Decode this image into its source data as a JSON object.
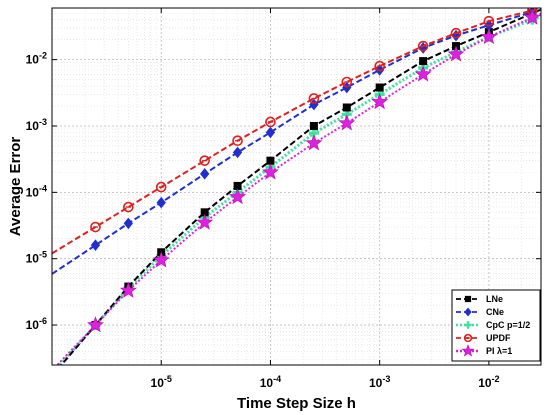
{
  "chart_data": {
    "type": "line",
    "xlabel": "Time Step Size h",
    "ylabel": "Average Error",
    "x_scale": "log",
    "y_scale": "log",
    "xlim": [
      1e-06,
      0.03
    ],
    "ylim": [
      2.5e-07,
      0.06
    ],
    "x_ticks": [
      {
        "value": 1e-05,
        "base": "10",
        "exp": "-5"
      },
      {
        "value": 0.0001,
        "base": "10",
        "exp": "-4"
      },
      {
        "value": 0.001,
        "base": "10",
        "exp": "-3"
      },
      {
        "value": 0.01,
        "base": "10",
        "exp": "-2"
      }
    ],
    "y_ticks": [
      {
        "value": 1e-06,
        "base": "10",
        "exp": "-6"
      },
      {
        "value": 1e-05,
        "base": "10",
        "exp": "-5"
      },
      {
        "value": 0.0001,
        "base": "10",
        "exp": "-4"
      },
      {
        "value": 0.001,
        "base": "10",
        "exp": "-3"
      },
      {
        "value": 0.01,
        "base": "10",
        "exp": "-2"
      }
    ],
    "grid": true,
    "legend_position": "bottom-right",
    "series": [
      {
        "name": "LNe",
        "color": "#000000",
        "marker": "square",
        "line_style": "dashed",
        "x": [
          2.5e-06,
          5e-06,
          1e-05,
          2.5e-05,
          5e-05,
          0.0001,
          0.00025,
          0.0005,
          0.001,
          0.0025,
          0.005,
          0.01,
          0.025
        ],
        "y": [
          1e-06,
          3.8e-06,
          1.25e-05,
          5e-05,
          0.000125,
          0.0003,
          0.001,
          0.0019,
          0.0038,
          0.0095,
          0.016,
          0.026,
          0.05
        ]
      },
      {
        "name": "CNe",
        "color": "#1f2fd0",
        "marker": "diamond",
        "line_style": "dashed",
        "x": [
          2.5e-06,
          5e-06,
          1e-05,
          2.5e-05,
          5e-05,
          0.0001,
          0.00025,
          0.0005,
          0.001,
          0.0025,
          0.005,
          0.01,
          0.025
        ],
        "y": [
          1.6e-05,
          3.4e-05,
          7e-05,
          0.00019,
          0.0004,
          0.0008,
          0.0021,
          0.0038,
          0.007,
          0.015,
          0.023,
          0.033,
          0.052
        ]
      },
      {
        "name": "CpC p=1/2",
        "color": "#40e0a0",
        "marker": "cross",
        "line_style": "dotted",
        "x": [
          2.5e-06,
          5e-06,
          1e-05,
          2.5e-05,
          5e-05,
          0.0001,
          0.00025,
          0.0005,
          0.001,
          0.0025,
          0.005,
          0.01,
          0.025
        ],
        "y": [
          1e-06,
          3.6e-06,
          1.1e-05,
          4.2e-05,
          0.0001,
          0.00024,
          0.00078,
          0.0015,
          0.003,
          0.0075,
          0.013,
          0.022,
          0.04
        ]
      },
      {
        "name": "UPDF",
        "color": "#e02020",
        "marker": "circle",
        "line_style": "dashed",
        "x": [
          2.5e-06,
          5e-06,
          1e-05,
          2.5e-05,
          5e-05,
          0.0001,
          0.00025,
          0.0005,
          0.001,
          0.0025,
          0.005,
          0.01,
          0.025
        ],
        "y": [
          3e-05,
          6e-05,
          0.00012,
          0.0003,
          0.0006,
          0.00115,
          0.0026,
          0.0046,
          0.008,
          0.016,
          0.025,
          0.038,
          0.055
        ]
      },
      {
        "name": "PI λ=1",
        "color": "#e020e0",
        "marker": "star",
        "line_style": "dotted",
        "x": [
          2.5e-06,
          5e-06,
          1e-05,
          2.5e-05,
          5e-05,
          0.0001,
          0.00025,
          0.0005,
          0.001,
          0.0025,
          0.005,
          0.01,
          0.025
        ],
        "y": [
          1e-06,
          3.3e-06,
          9.5e-06,
          3.5e-05,
          8.5e-05,
          0.0002,
          0.00055,
          0.0011,
          0.0023,
          0.006,
          0.012,
          0.022,
          0.043
        ]
      }
    ]
  }
}
